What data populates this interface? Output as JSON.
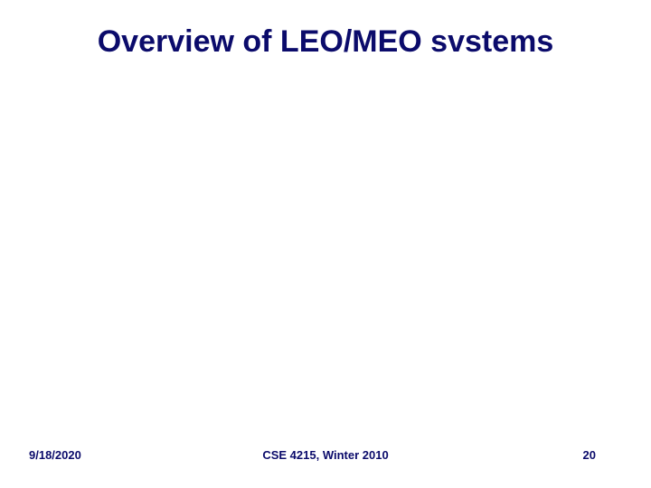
{
  "header": {
    "title": "Overview of LEO/MEO svstems"
  },
  "footer": {
    "date": "9/18/2020",
    "course": "CSE 4215, Winter 2010",
    "page": 20
  }
}
